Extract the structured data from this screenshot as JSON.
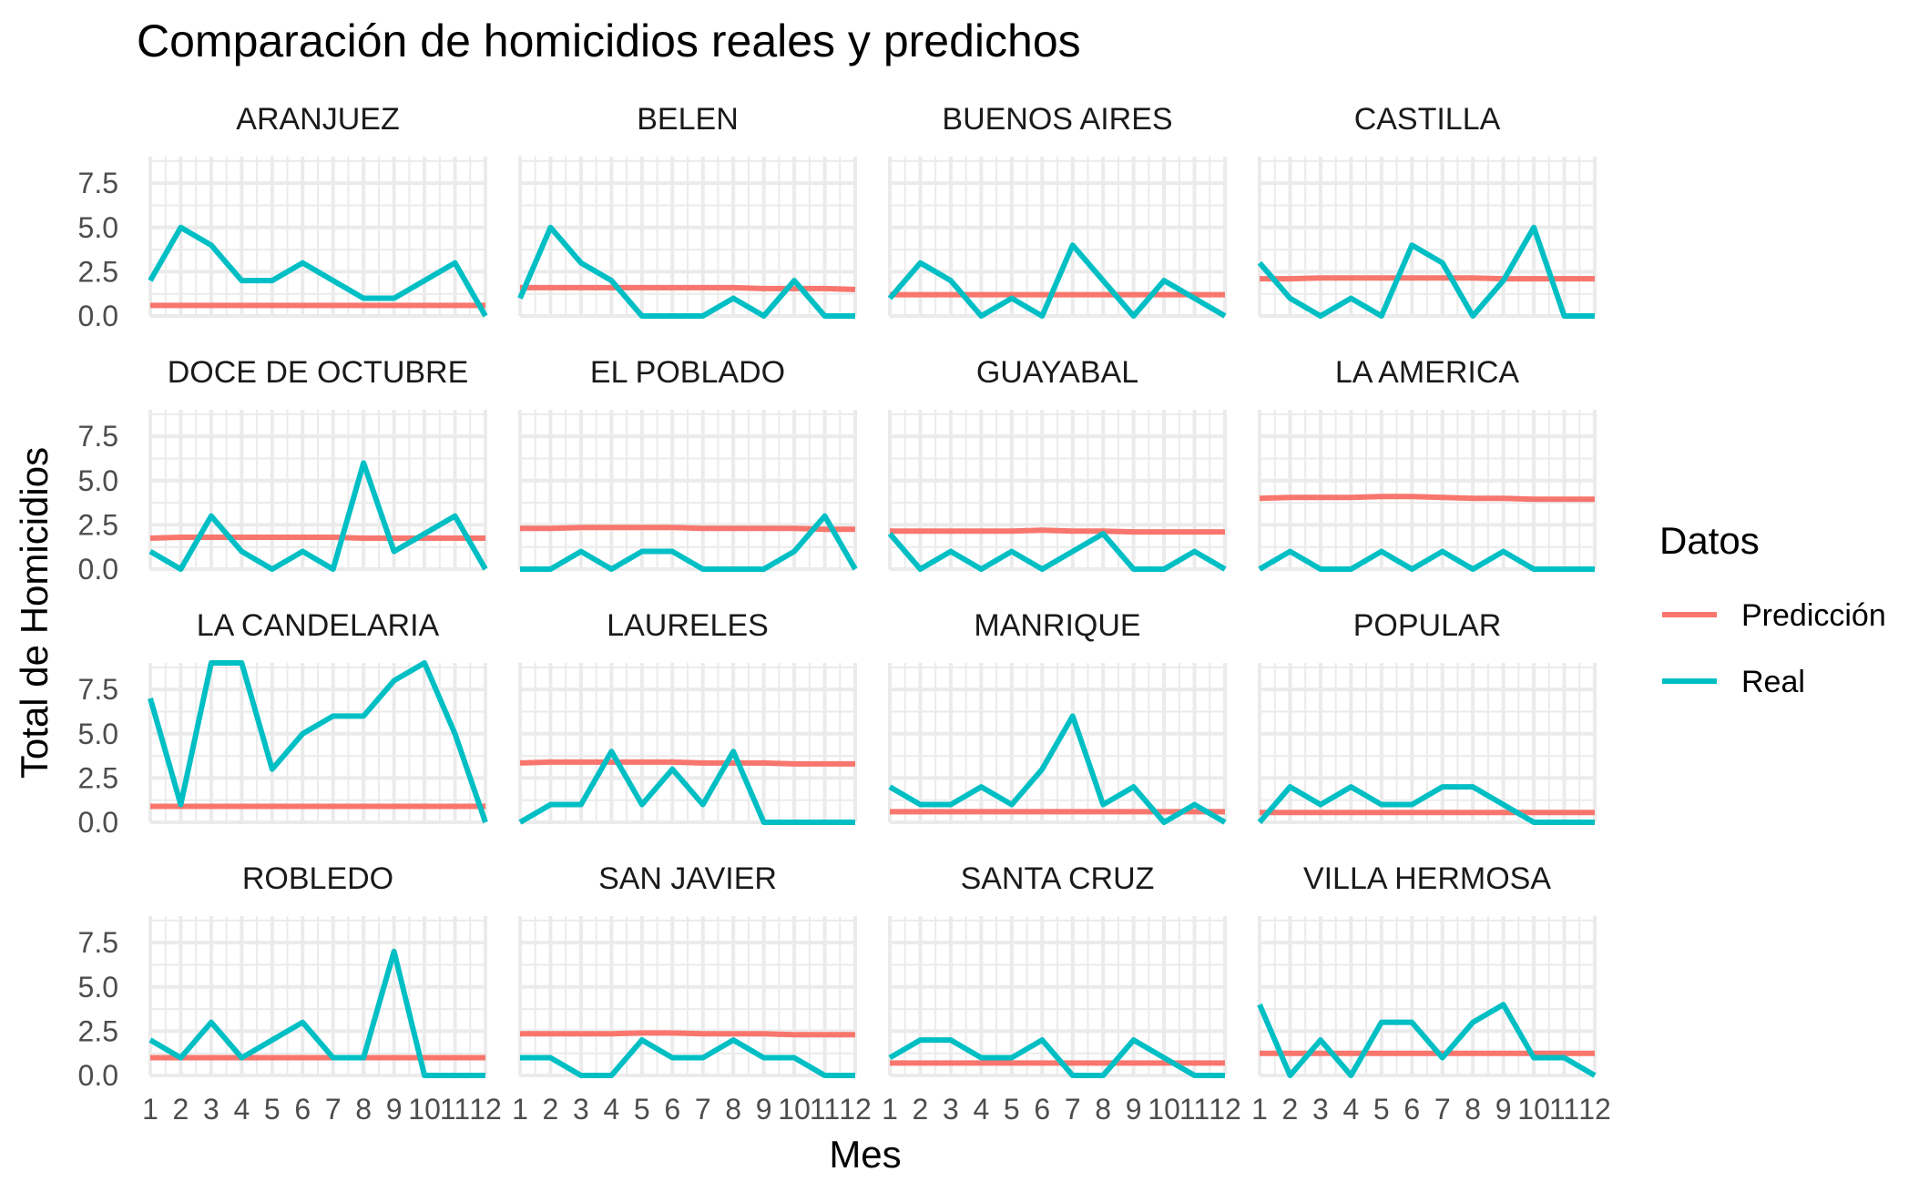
{
  "chart_data": {
    "type": "line",
    "title": "Comparación de homicidios reales y predichos",
    "xlabel": "Mes",
    "ylabel": "Total de Homicidios",
    "x": [
      1,
      2,
      3,
      4,
      5,
      6,
      7,
      8,
      9,
      10,
      11,
      12
    ],
    "x_tick_labels": [
      "1",
      "2",
      "3",
      "4",
      "5",
      "6",
      "7",
      "8",
      "9",
      "10",
      "11",
      "12"
    ],
    "y_ticks": [
      0,
      2.5,
      5,
      7.5
    ],
    "y_tick_labels": [
      "0.0",
      "2.5",
      "5.0",
      "7.5"
    ],
    "ylim": [
      0,
      9
    ],
    "grid": true,
    "legend": {
      "title": "Datos",
      "position": "right",
      "entries": [
        {
          "name": "Predicción",
          "color": "#F8766D"
        },
        {
          "name": "Real",
          "color": "#00BFC4"
        }
      ]
    },
    "facets": [
      {
        "name": "ARANJUEZ",
        "series": [
          {
            "name": "Predicción",
            "values": [
              0.6,
              0.6,
              0.6,
              0.6,
              0.6,
              0.6,
              0.6,
              0.6,
              0.6,
              0.6,
              0.6,
              0.6
            ]
          },
          {
            "name": "Real",
            "values": [
              2,
              5,
              4,
              2,
              2,
              3,
              2,
              1,
              1,
              2,
              3,
              0
            ]
          }
        ]
      },
      {
        "name": "BELEN",
        "series": [
          {
            "name": "Predicción",
            "values": [
              1.6,
              1.6,
              1.6,
              1.6,
              1.6,
              1.6,
              1.6,
              1.6,
              1.55,
              1.55,
              1.55,
              1.5
            ]
          },
          {
            "name": "Real",
            "values": [
              1,
              5,
              3,
              2,
              0,
              0,
              0,
              1,
              0,
              2,
              0,
              0
            ]
          }
        ]
      },
      {
        "name": "BUENOS AIRES",
        "series": [
          {
            "name": "Predicción",
            "values": [
              1.2,
              1.2,
              1.2,
              1.2,
              1.2,
              1.2,
              1.2,
              1.2,
              1.2,
              1.2,
              1.2,
              1.2
            ]
          },
          {
            "name": "Real",
            "values": [
              1,
              3,
              2,
              0,
              1,
              0,
              4,
              2,
              0,
              2,
              1,
              0
            ]
          }
        ]
      },
      {
        "name": "CASTILLA",
        "series": [
          {
            "name": "Predicción",
            "values": [
              2.1,
              2.1,
              2.15,
              2.15,
              2.15,
              2.15,
              2.15,
              2.15,
              2.1,
              2.1,
              2.1,
              2.1
            ]
          },
          {
            "name": "Real",
            "values": [
              3,
              1,
              0,
              1,
              0,
              4,
              3,
              0,
              2,
              5,
              0,
              0
            ]
          }
        ]
      },
      {
        "name": "DOCE DE OCTUBRE",
        "series": [
          {
            "name": "Predicción",
            "values": [
              1.75,
              1.8,
              1.8,
              1.8,
              1.8,
              1.8,
              1.8,
              1.75,
              1.75,
              1.75,
              1.75,
              1.75
            ]
          },
          {
            "name": "Real",
            "values": [
              1,
              0,
              3,
              1,
              0,
              1,
              0,
              6,
              1,
              2,
              3,
              0
            ]
          }
        ]
      },
      {
        "name": "EL POBLADO",
        "series": [
          {
            "name": "Predicción",
            "values": [
              2.3,
              2.3,
              2.35,
              2.35,
              2.35,
              2.35,
              2.3,
              2.3,
              2.3,
              2.3,
              2.25,
              2.25
            ]
          },
          {
            "name": "Real",
            "values": [
              0,
              0,
              1,
              0,
              1,
              1,
              0,
              0,
              0,
              1,
              3,
              0
            ]
          }
        ]
      },
      {
        "name": "GUAYABAL",
        "series": [
          {
            "name": "Predicción",
            "values": [
              2.15,
              2.15,
              2.15,
              2.15,
              2.15,
              2.2,
              2.15,
              2.15,
              2.1,
              2.1,
              2.1,
              2.1
            ]
          },
          {
            "name": "Real",
            "values": [
              2,
              0,
              1,
              0,
              1,
              0,
              1,
              2,
              0,
              0,
              1,
              0
            ]
          }
        ]
      },
      {
        "name": "LA AMERICA",
        "series": [
          {
            "name": "Predicción",
            "values": [
              4.0,
              4.05,
              4.05,
              4.05,
              4.1,
              4.1,
              4.05,
              4.0,
              4.0,
              3.95,
              3.95,
              3.95
            ]
          },
          {
            "name": "Real",
            "values": [
              0,
              1,
              0,
              0,
              1,
              0,
              1,
              0,
              1,
              0,
              0,
              0
            ]
          }
        ]
      },
      {
        "name": "LA CANDELARIA",
        "series": [
          {
            "name": "Predicción",
            "values": [
              0.9,
              0.9,
              0.9,
              0.9,
              0.9,
              0.9,
              0.9,
              0.9,
              0.9,
              0.9,
              0.9,
              0.9
            ]
          },
          {
            "name": "Real",
            "values": [
              7,
              1,
              9,
              9,
              3,
              5,
              6,
              6,
              8,
              9,
              5,
              0
            ]
          }
        ]
      },
      {
        "name": "LAURELES",
        "series": [
          {
            "name": "Predicción",
            "values": [
              3.35,
              3.4,
              3.4,
              3.4,
              3.4,
              3.4,
              3.35,
              3.35,
              3.35,
              3.3,
              3.3,
              3.3
            ]
          },
          {
            "name": "Real",
            "values": [
              0,
              1,
              1,
              4,
              1,
              3,
              1,
              4,
              0,
              0,
              0,
              0
            ]
          }
        ]
      },
      {
        "name": "MANRIQUE",
        "series": [
          {
            "name": "Predicción",
            "values": [
              0.6,
              0.6,
              0.6,
              0.6,
              0.6,
              0.6,
              0.6,
              0.6,
              0.6,
              0.6,
              0.6,
              0.6
            ]
          },
          {
            "name": "Real",
            "values": [
              2,
              1,
              1,
              2,
              1,
              3,
              6,
              1,
              2,
              0,
              1,
              0
            ]
          }
        ]
      },
      {
        "name": "POPULAR",
        "series": [
          {
            "name": "Predicción",
            "values": [
              0.55,
              0.55,
              0.55,
              0.55,
              0.55,
              0.55,
              0.55,
              0.55,
              0.55,
              0.55,
              0.55,
              0.55
            ]
          },
          {
            "name": "Real",
            "values": [
              0,
              2,
              1,
              2,
              1,
              1,
              2,
              2,
              1,
              0,
              0,
              0
            ]
          }
        ]
      },
      {
        "name": "ROBLEDO",
        "series": [
          {
            "name": "Predicción",
            "values": [
              1.0,
              1.0,
              1.0,
              1.0,
              1.0,
              1.0,
              1.0,
              1.0,
              1.0,
              1.0,
              1.0,
              1.0
            ]
          },
          {
            "name": "Real",
            "values": [
              2,
              1,
              3,
              1,
              2,
              3,
              1,
              1,
              7,
              0,
              0,
              0
            ]
          }
        ]
      },
      {
        "name": "SAN JAVIER",
        "series": [
          {
            "name": "Predicción",
            "values": [
              2.35,
              2.35,
              2.35,
              2.35,
              2.4,
              2.4,
              2.35,
              2.35,
              2.35,
              2.3,
              2.3,
              2.3
            ]
          },
          {
            "name": "Real",
            "values": [
              1,
              1,
              0,
              0,
              2,
              1,
              1,
              2,
              1,
              1,
              0,
              0
            ]
          }
        ]
      },
      {
        "name": "SANTA CRUZ",
        "series": [
          {
            "name": "Predicción",
            "values": [
              0.7,
              0.7,
              0.7,
              0.7,
              0.7,
              0.7,
              0.7,
              0.7,
              0.7,
              0.7,
              0.7,
              0.7
            ]
          },
          {
            "name": "Real",
            "values": [
              1,
              2,
              2,
              1,
              1,
              2,
              0,
              0,
              2,
              1,
              0,
              0
            ]
          }
        ]
      },
      {
        "name": "VILLA HERMOSA",
        "series": [
          {
            "name": "Predicción",
            "values": [
              1.25,
              1.25,
              1.25,
              1.25,
              1.25,
              1.25,
              1.25,
              1.25,
              1.25,
              1.25,
              1.25,
              1.25
            ]
          },
          {
            "name": "Real",
            "values": [
              4,
              0,
              2,
              0,
              3,
              3,
              1,
              3,
              4,
              1,
              1,
              0
            ]
          }
        ]
      }
    ]
  }
}
